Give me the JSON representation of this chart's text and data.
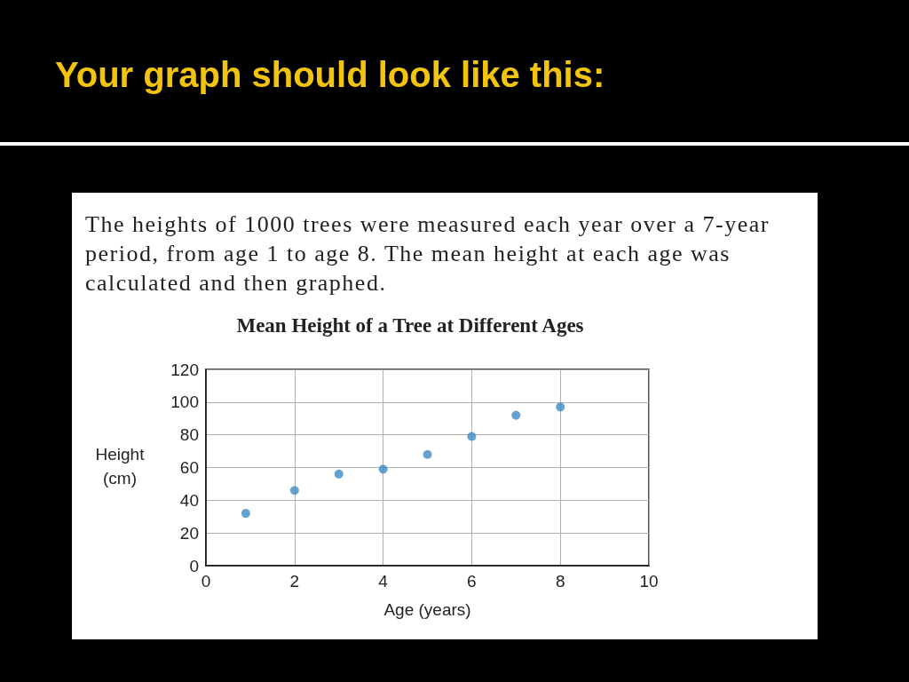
{
  "chart_data": {
    "type": "scatter",
    "title": "Mean Height of a Tree at Different Ages",
    "xlabel": "Age (years)",
    "ylabel": "Height (cm)",
    "annotations": [
      "Your graph should look like this:",
      "The heights of 1000 trees were measured each year over a 7-year period, from age 1 to age 8. The mean height at each age was calculated and then graphed."
    ],
    "x": [
      0.9,
      2,
      3,
      4,
      5,
      6,
      7,
      8
    ],
    "values": [
      32,
      46,
      56,
      59,
      68,
      79,
      92,
      97
    ],
    "color": "#3d8cc4",
    "xlim": [
      0,
      10
    ],
    "xticks": [
      0,
      2,
      4,
      6,
      8,
      10
    ],
    "ylim": [
      0,
      120
    ],
    "yticks": [
      0,
      20,
      40,
      60,
      80,
      100,
      120
    ],
    "grid": true,
    "marker": "circle"
  }
}
